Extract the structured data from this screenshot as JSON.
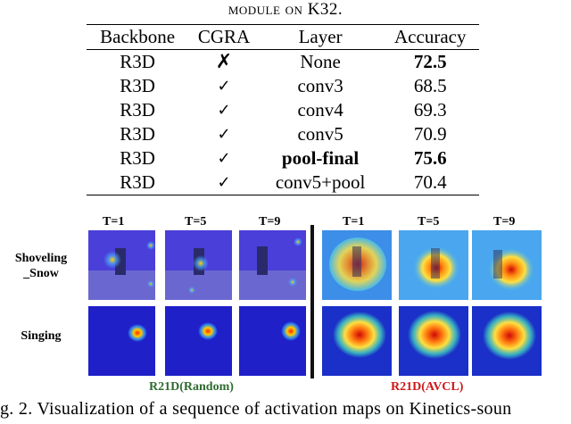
{
  "caption_top": {
    "prefix": "module on K32."
  },
  "table": {
    "headers": [
      "Backbone",
      "CGRA",
      "Layer",
      "Accuracy"
    ],
    "rows": [
      {
        "backbone": "R3D",
        "cgra": "✗",
        "layer": "None",
        "accuracy": "72.5",
        "layer_bold": false,
        "acc_bold": true
      },
      {
        "backbone": "R3D",
        "cgra": "✓",
        "layer": "conv3",
        "accuracy": "68.5",
        "layer_bold": false,
        "acc_bold": false
      },
      {
        "backbone": "R3D",
        "cgra": "✓",
        "layer": "conv4",
        "accuracy": "69.3",
        "layer_bold": false,
        "acc_bold": false
      },
      {
        "backbone": "R3D",
        "cgra": "✓",
        "layer": "conv5",
        "accuracy": "70.9",
        "layer_bold": false,
        "acc_bold": false
      },
      {
        "backbone": "R3D",
        "cgra": "✓",
        "layer": "pool-final",
        "accuracy": "75.6",
        "layer_bold": true,
        "acc_bold": true
      },
      {
        "backbone": "R3D",
        "cgra": "✓",
        "layer": "conv5+pool",
        "accuracy": "70.4",
        "layer_bold": false,
        "acc_bold": false
      }
    ]
  },
  "figure": {
    "time_labels": [
      "T=1",
      "T=5",
      "T=9",
      "T=1",
      "T=5",
      "T=9"
    ],
    "row_labels": {
      "shoveling": "Shoveling _Snow",
      "singing": "Singing"
    },
    "left_group": {
      "label": "R21D(Random)",
      "color": "#2e6b2e"
    },
    "right_group": {
      "label": "R21D(AVCL)",
      "color": "#d01818"
    }
  },
  "caption_bottom": "g. 2.  Visualization of a sequence of activation maps on Kinetics-soun"
}
